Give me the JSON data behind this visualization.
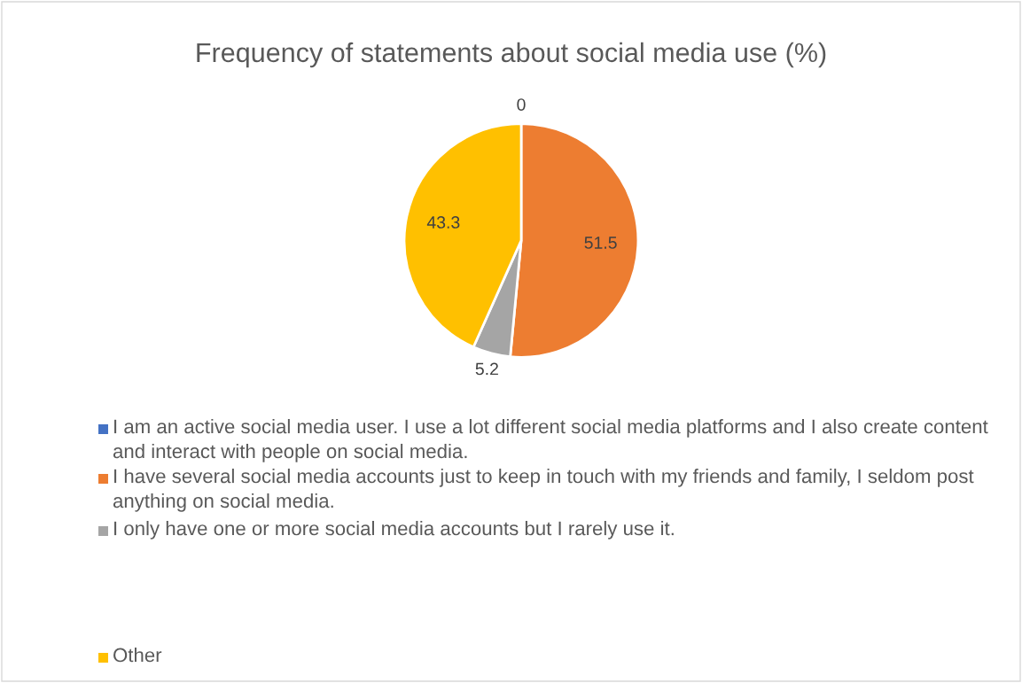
{
  "chart_data": {
    "type": "pie",
    "title": "Frequency of statements about social media use (%)",
    "categories": [
      "I am an active social media user. I use a lot different social media platforms and I also create content and interact with people on social media.",
      "I have several social media accounts just to keep in touch with my friends and family, I seldom post anything on social media.",
      "I only have one or more social media accounts but I rarely use it.",
      "Other"
    ],
    "values": [
      0,
      51.5,
      5.2,
      43.3
    ],
    "colors": [
      "#4472c4",
      "#ed7d31",
      "#a5a5a5",
      "#ffc000"
    ],
    "value_labels": [
      "0",
      "51.5",
      "5.2",
      "43.3"
    ],
    "legend": "bottom"
  }
}
